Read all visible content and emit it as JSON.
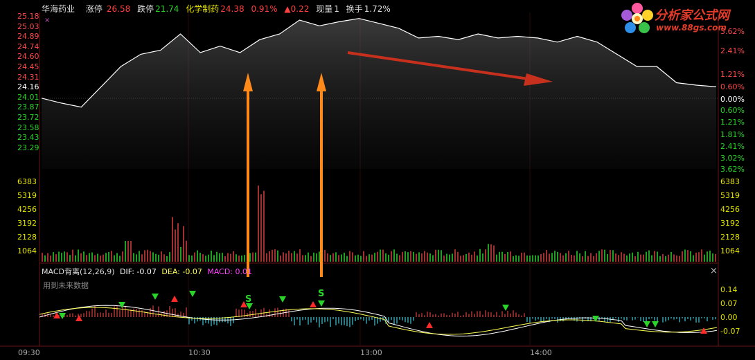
{
  "header": {
    "stock_name": "华海药业",
    "limit_up_label": "涨停",
    "limit_up_value": "26.58",
    "limit_down_label": "跌停",
    "limit_down_value": "21.74",
    "sector_name": "化学制药",
    "sector_price": "24.38",
    "sector_pct": "0.91%",
    "sector_change": "▲0.22",
    "volume_label": "现量",
    "volume_value": "1",
    "turnover_label": "换手",
    "turnover_value": "1.72%"
  },
  "logo": {
    "title": "分析家公式网",
    "url": "www.88gs.com"
  },
  "price_axis": {
    "left_labels": [
      "25.18",
      "25.03",
      "24.89",
      "24.74",
      "24.60",
      "24.45",
      "24.31",
      "24.16",
      "24.01",
      "23.87",
      "23.72",
      "23.58",
      "23.43",
      "23.29"
    ],
    "right_labels": [
      "3.62%",
      "2.41%",
      "1.21%",
      "0.60%",
      "0.00%",
      "0.60%",
      "1.21%",
      "1.81%",
      "2.41%",
      "3.02%",
      "3.62%"
    ],
    "prev_close": "24.16"
  },
  "volume_axis": {
    "left_labels": [
      "6383",
      "5319",
      "4256",
      "3192",
      "2128",
      "1064"
    ],
    "right_labels": [
      "6383",
      "5319",
      "4256",
      "3192",
      "2128",
      "1064"
    ]
  },
  "macd": {
    "title": "MACD背离(12,26,9)",
    "dif": "DIF: -0.07",
    "dea": "DEA: -0.07",
    "macd_val": "MACD: 0.01",
    "note": "用到未来数据",
    "right_labels": [
      "0.14",
      "0.07",
      "0.00",
      "-0.07"
    ],
    "signal_label": "S"
  },
  "time_axis": [
    "09:30",
    "10:30",
    "13:00",
    "14:00"
  ],
  "colors": {
    "up": "#ff3b3b",
    "down": "#2ad52a",
    "neutral": "#ffffff",
    "arrow_orange": "#ff8a1a",
    "arrow_red": "#c8301e",
    "dif": "#ffffff",
    "dea": "#ffff55",
    "macd": "#ff44ff"
  },
  "chart_data": {
    "type": "line",
    "title": "",
    "x_range": [
      "09:30",
      "15:00"
    ],
    "price_series": {
      "name": "",
      "y": [
        24.16,
        24.1,
        24.05,
        24.3,
        24.55,
        24.7,
        24.75,
        24.95,
        24.72,
        24.8,
        24.72,
        24.88,
        24.95,
        25.12,
        25.05,
        25.1,
        25.14,
        25.08,
        25.02,
        24.9,
        24.92,
        24.88,
        24.95,
        24.9,
        24.92,
        24.9,
        24.85,
        24.92,
        24.85,
        24.7,
        24.55,
        24.55,
        24.35,
        24.32,
        24.3
      ]
    },
    "ylim": [
      23.29,
      25.18
    ]
  }
}
